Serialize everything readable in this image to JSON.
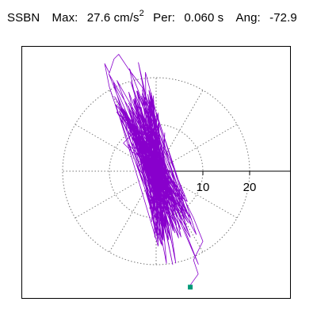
{
  "header": {
    "station": "SSBN",
    "max_label": "Max:",
    "max_value": "27.6 cm/s",
    "max_exponent": "2",
    "per_label": "Per:",
    "per_value": "0.060 s",
    "ang_label": "Ang:",
    "ang_value": "-72.9"
  },
  "colors": {
    "trace": "#8800cc",
    "end_marker": "#009977",
    "grid": "#777777",
    "axis": "#000000"
  },
  "chart_data": {
    "type": "scatter",
    "description_type": "polar particle-motion (acceleration hodograph) trace",
    "radial_ticks": [
      10,
      20
    ],
    "tick_labels": [
      "10",
      "20"
    ],
    "grid_circles": [
      10,
      20
    ],
    "grid_spokes_deg": [
      0,
      30,
      60,
      90,
      120,
      150,
      180,
      210,
      240,
      270,
      300,
      330
    ],
    "xlim": [
      -28,
      28
    ],
    "ylim": [
      -25.5,
      26.5
    ],
    "max_amplitude": 27.6,
    "angle_deg": -72.9,
    "end_point": [
      7.3,
      -24.8
    ],
    "trace": [
      [
        0,
        0
      ],
      [
        2,
        1
      ],
      [
        -1,
        3
      ],
      [
        -4,
        1
      ],
      [
        -2,
        -2
      ],
      [
        1,
        -3
      ],
      [
        3,
        0
      ],
      [
        -1,
        2
      ],
      [
        -5,
        4
      ],
      [
        -7,
        6
      ],
      [
        -4,
        9
      ],
      [
        -8,
        12
      ],
      [
        -10,
        18
      ],
      [
        -11,
        23
      ],
      [
        -10,
        21
      ],
      [
        -9,
        24
      ],
      [
        -8,
        25
      ],
      [
        -6,
        22
      ],
      [
        -3,
        18
      ],
      [
        -1,
        13
      ],
      [
        -2,
        9
      ],
      [
        -4,
        6
      ],
      [
        -1,
        3
      ],
      [
        2,
        0
      ],
      [
        4,
        -3
      ],
      [
        6,
        -6
      ],
      [
        8,
        -10
      ],
      [
        10,
        -15
      ],
      [
        8,
        -19
      ],
      [
        9,
        -22
      ],
      [
        7,
        -24.8
      ]
    ]
  }
}
